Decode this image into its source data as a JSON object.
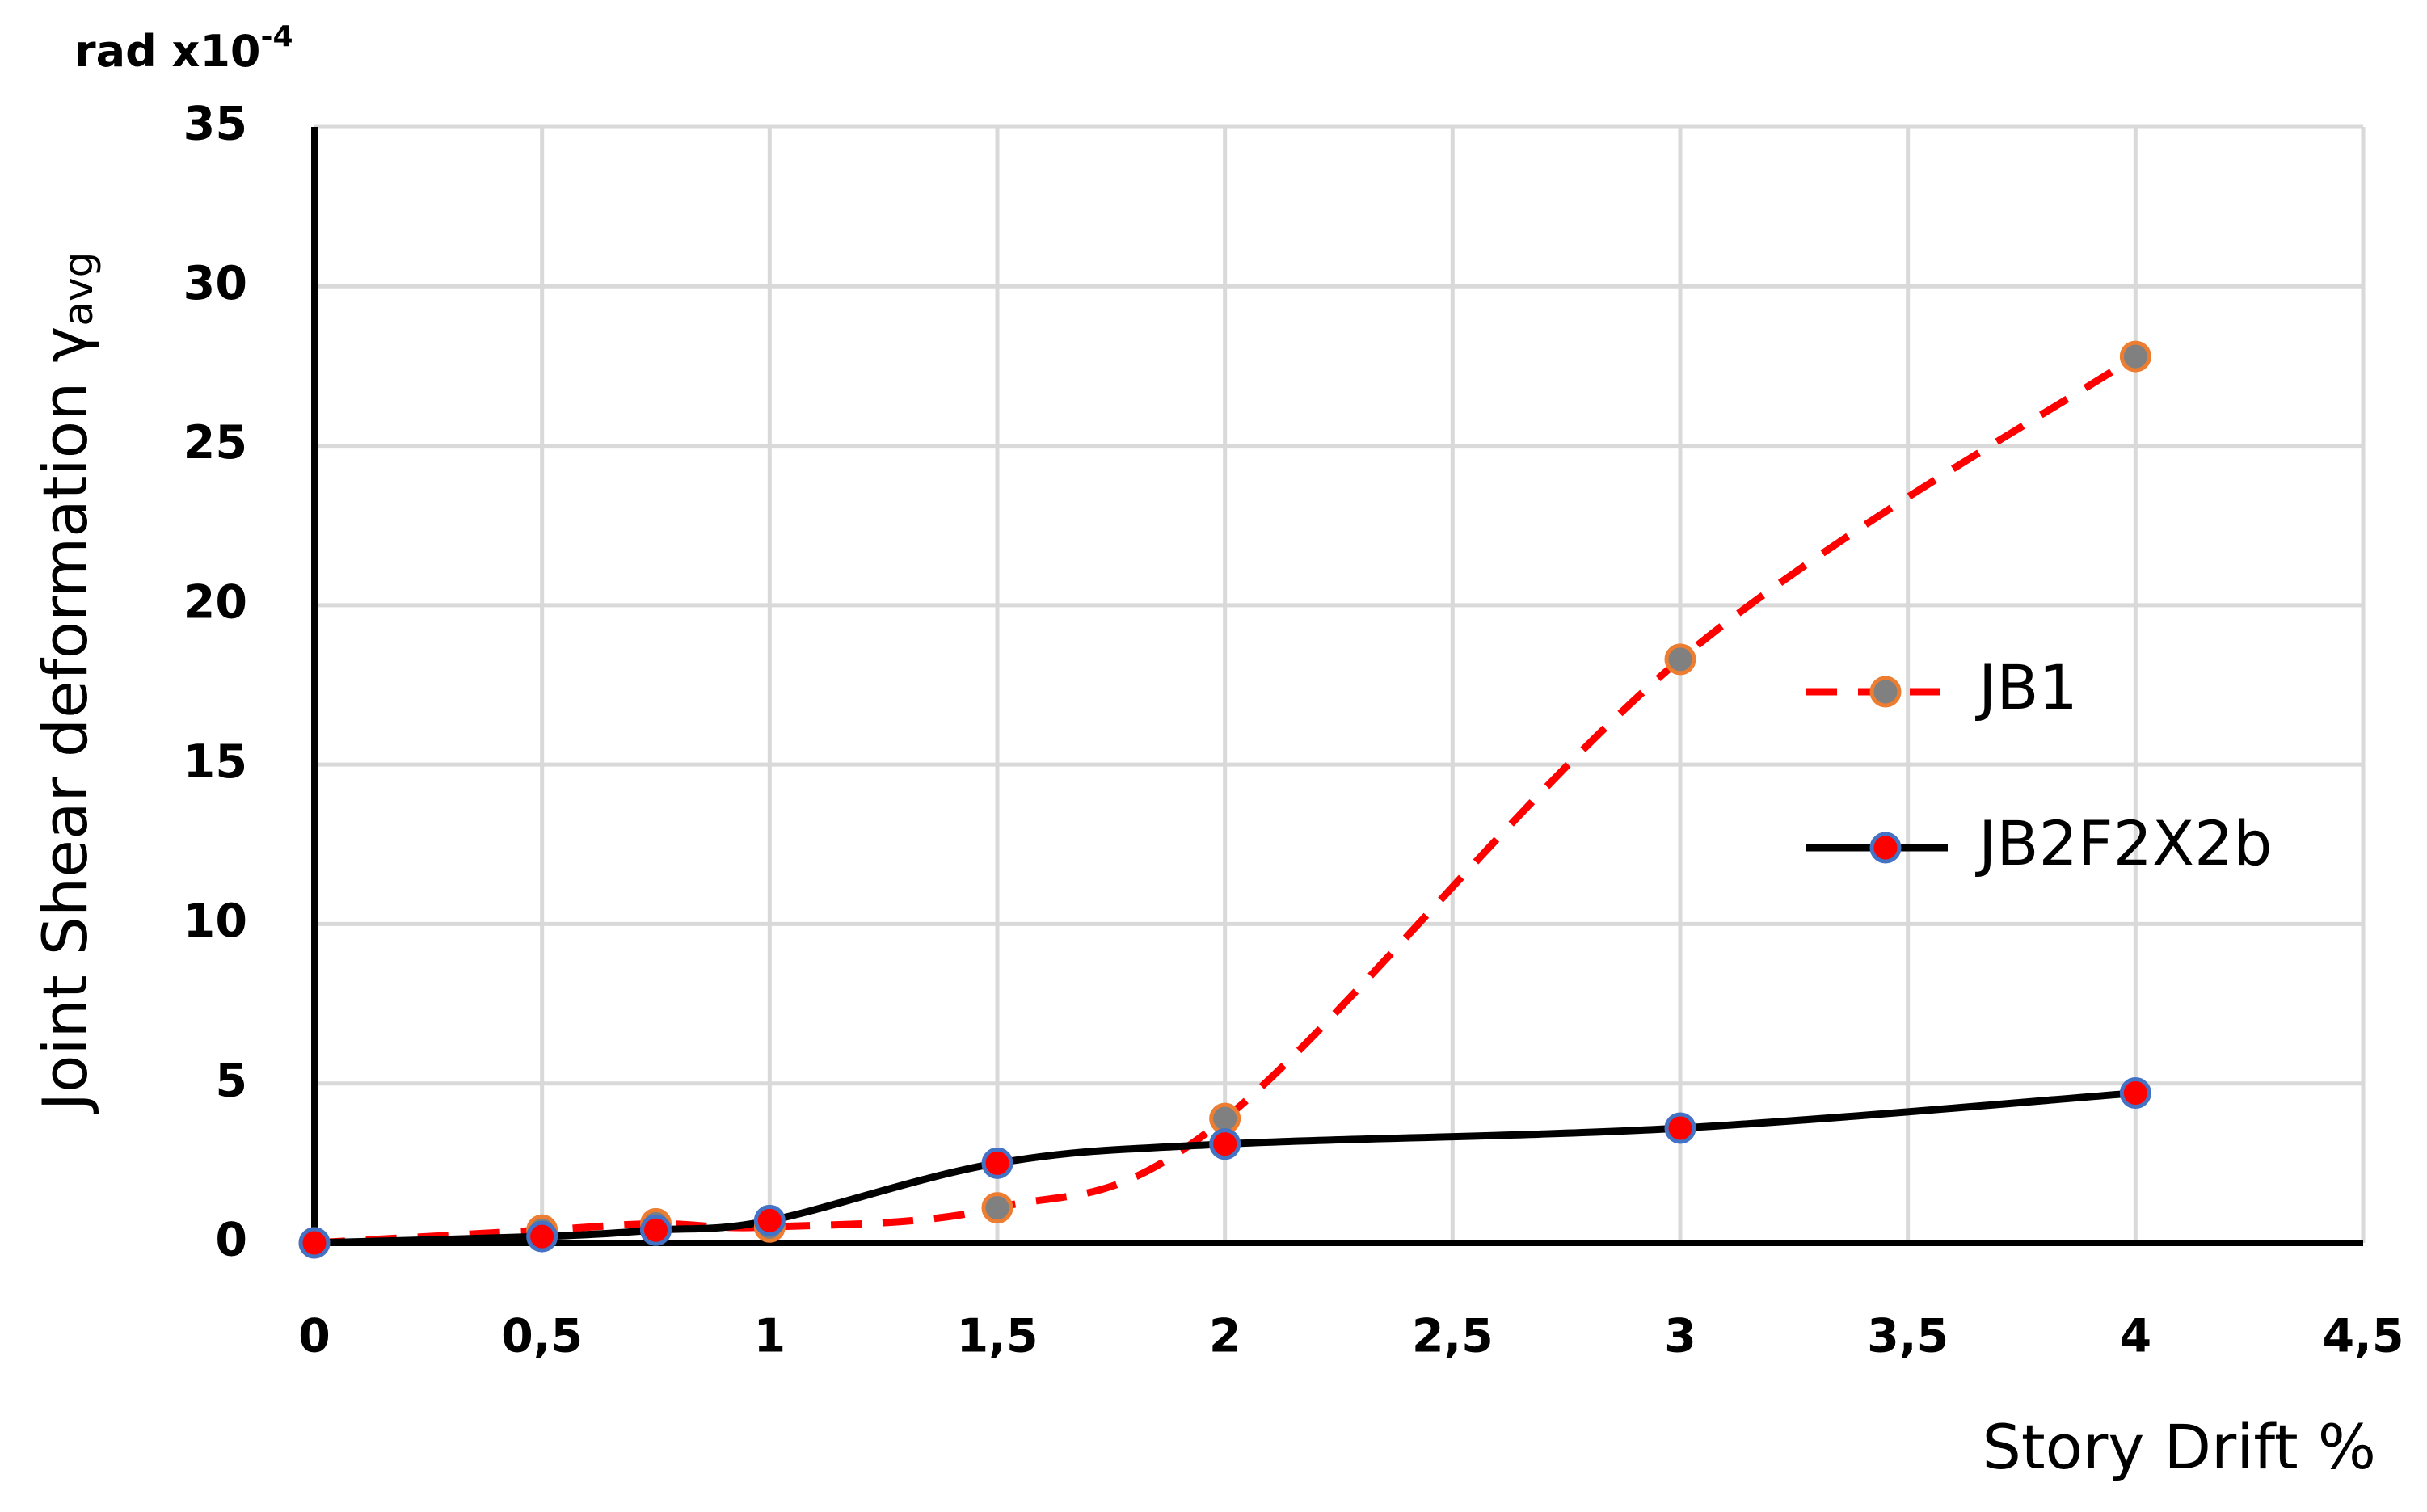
{
  "chart_data": {
    "type": "line",
    "y_unit": "rad x10",
    "y_unit_exponent": "-4",
    "y_label": "Joint Shear deformation γ",
    "y_label_subscript": "avg",
    "x_label": "Story Drift %",
    "x": [
      0,
      0.5,
      0.75,
      1,
      1.5,
      2,
      3,
      4
    ],
    "series": [
      {
        "name": "JB1",
        "color": "#ff0000",
        "marker_fill": "#808080",
        "marker_stroke": "#ed7d31",
        "dash": true,
        "values": [
          0,
          0.4,
          0.6,
          0.5,
          1.1,
          3.9,
          18.3,
          27.8
        ]
      },
      {
        "name": "JB2F2X2b",
        "color": "#000000",
        "marker_fill": "#ff0000",
        "marker_stroke": "#4472c4",
        "dash": false,
        "values": [
          0,
          0.2,
          0.4,
          0.7,
          2.5,
          3.1,
          3.6,
          4.7
        ]
      }
    ],
    "xlim": [
      0,
      4.5
    ],
    "xticks": [
      0,
      {
        "value": 0.5,
        "label": "0,5"
      },
      1,
      {
        "value": 1.5,
        "label": "1,5"
      },
      2,
      {
        "value": 2.5,
        "label": "2,5"
      },
      3,
      {
        "value": 3.5,
        "label": "3,5"
      },
      4,
      {
        "value": 4.5,
        "label": "4,5"
      }
    ],
    "ylim": [
      0,
      35
    ],
    "yticks": [
      0,
      5,
      10,
      15,
      20,
      25,
      30,
      35
    ],
    "grid": true,
    "smooth": true,
    "legend": "right"
  }
}
